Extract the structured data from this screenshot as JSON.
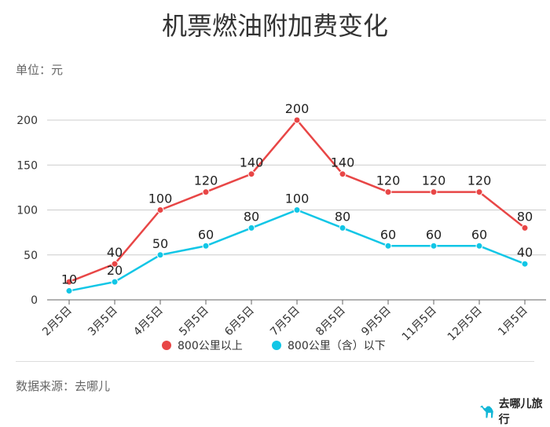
{
  "chart_data": {
    "type": "line",
    "title": "机票燃油附加费变化",
    "unit_label": "单位：元",
    "categories": [
      "2月5日",
      "3月5日",
      "4月5日",
      "5月5日",
      "6月5日",
      "7月5日",
      "8月5日",
      "9月5日",
      "11月5日",
      "12月5日",
      "1月5日"
    ],
    "yticks": [
      0,
      50,
      100,
      150,
      200
    ],
    "ylim": [
      0,
      200
    ],
    "grid": true,
    "legend_position": "bottom",
    "series": [
      {
        "name": "800公里以上",
        "color": "#e84646",
        "values": [
          20,
          40,
          100,
          120,
          140,
          200,
          140,
          120,
          120,
          120,
          80
        ]
      },
      {
        "name": "800公里（含）以下",
        "color": "#11c6e6",
        "values": [
          10,
          20,
          50,
          60,
          80,
          100,
          80,
          60,
          60,
          60,
          40
        ]
      }
    ]
  },
  "footer": {
    "source": "数据来源：去哪儿",
    "brand": "去哪儿旅行",
    "brand_icon": "camel-icon"
  }
}
